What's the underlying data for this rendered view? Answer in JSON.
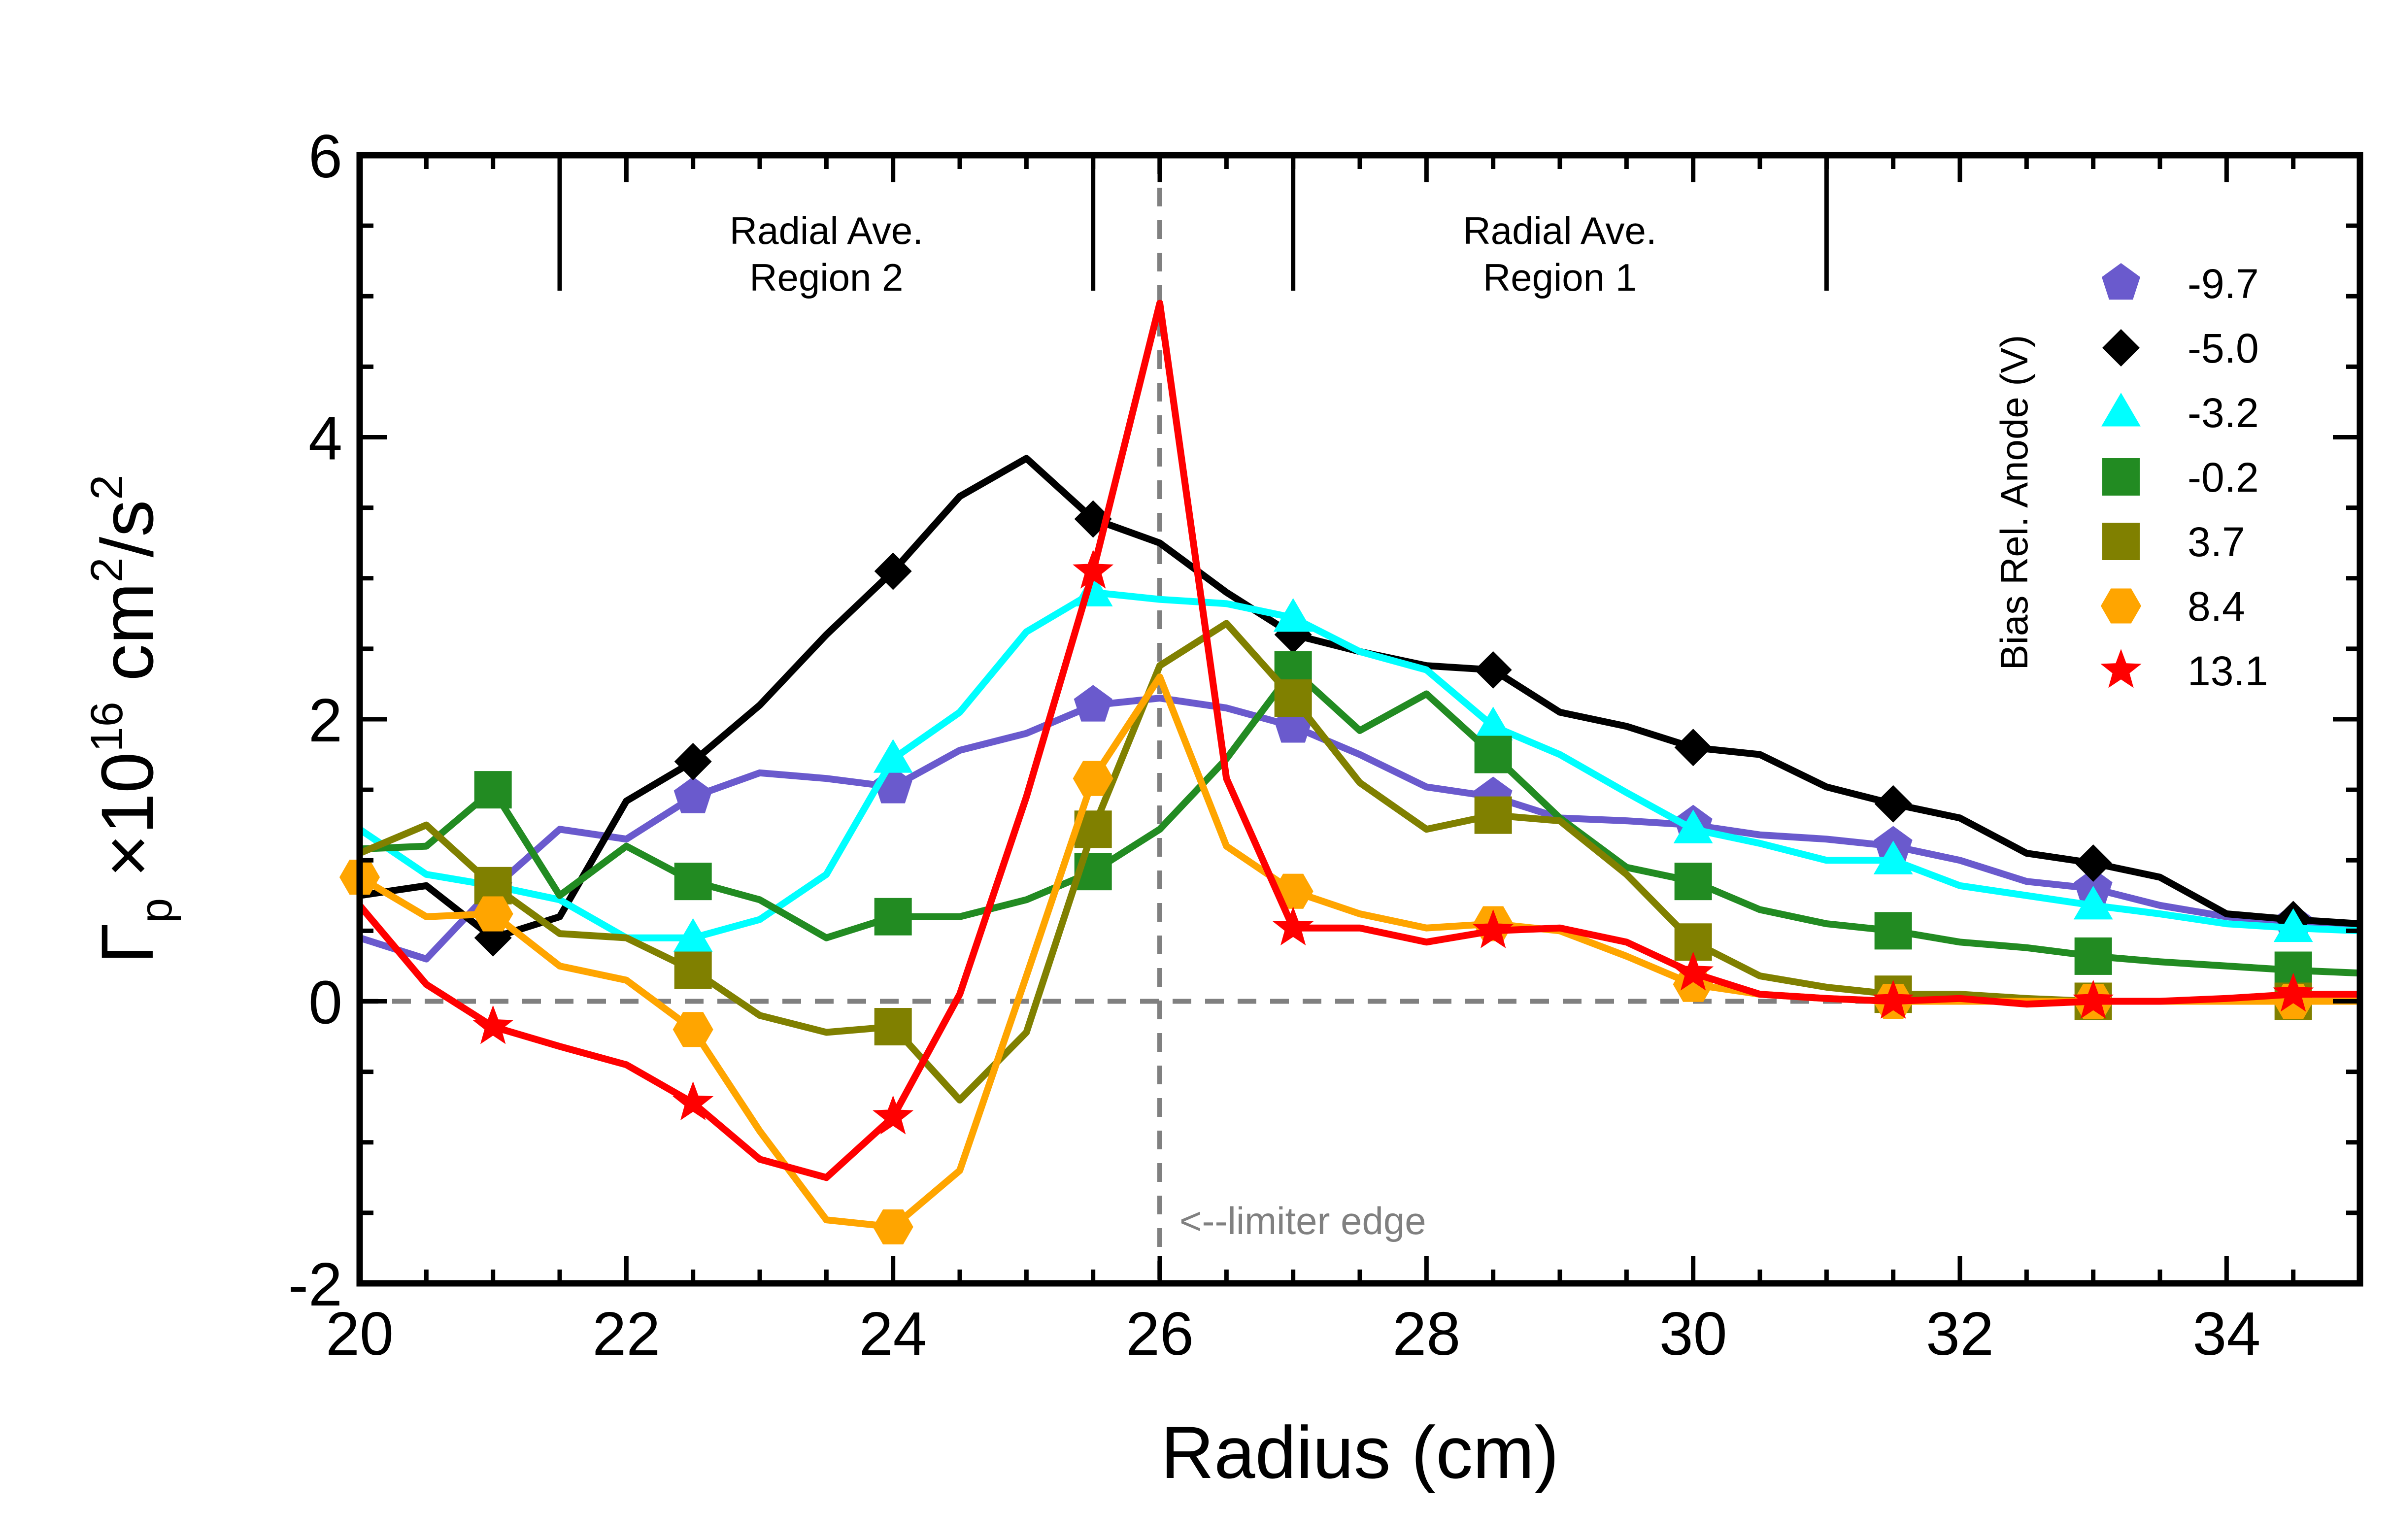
{
  "chart_data": {
    "type": "line",
    "xlabel": "Radius (cm)",
    "ylabel": {
      "base": "Γ",
      "sub": "p",
      "mid": " ×10",
      "exp1": "16",
      "unit1": " cm",
      "exp2": "2",
      "unit2": "/s",
      "exp3": "2"
    },
    "xlim": [
      20,
      35
    ],
    "ylim": [
      -2,
      6
    ],
    "xticks": [
      20,
      22,
      24,
      26,
      28,
      30,
      32,
      34
    ],
    "xtick_labels": [
      "20",
      "22",
      "24",
      "26",
      "28",
      "30",
      "32",
      "34"
    ],
    "yticks": [
      -2,
      0,
      2,
      4,
      6
    ],
    "ytick_labels": [
      "-2",
      "0",
      "2",
      "4",
      "6"
    ],
    "grid": false,
    "legend_title": "Bias Rel. Anode (V)",
    "legend_position": "top-right",
    "annotations": {
      "limiter": "<--limiter edge",
      "region2_line1": "Radial Ave.",
      "region2_line2": "Region 2",
      "region1_line1": "Radial Ave.",
      "region1_line2": "Region 1"
    },
    "series": [
      {
        "name": "-9.7",
        "color": "#6a5acd",
        "marker": "pentagon",
        "x": [
          20,
          20.5,
          21,
          21.5,
          22,
          22.5,
          23,
          23.5,
          24,
          24.5,
          25,
          25.5,
          26,
          26.5,
          27,
          27.5,
          28,
          28.5,
          29,
          29.5,
          30,
          30.5,
          31,
          31.5,
          32,
          32.5,
          33,
          33.5,
          34,
          34.5,
          35
        ],
        "y": [
          0.45,
          0.3,
          0.8,
          1.22,
          1.15,
          1.45,
          1.62,
          1.58,
          1.52,
          1.78,
          1.9,
          2.1,
          2.15,
          2.08,
          1.95,
          1.75,
          1.52,
          1.45,
          1.3,
          1.28,
          1.25,
          1.18,
          1.15,
          1.1,
          1.0,
          0.85,
          0.8,
          0.68,
          0.6,
          0.55,
          0.52
        ],
        "marker_x": [
          21,
          22.5,
          24,
          25.5,
          27,
          28.5,
          30,
          31.5,
          33,
          34.5
        ]
      },
      {
        "name": "-5.0",
        "color": "#000000",
        "marker": "diamond",
        "x": [
          20,
          20.5,
          21,
          21.5,
          22,
          22.5,
          23,
          23.5,
          24,
          24.5,
          25,
          25.5,
          26,
          26.5,
          27,
          27.5,
          28,
          28.5,
          29,
          29.5,
          30,
          30.5,
          31,
          31.5,
          32,
          32.5,
          33,
          33.5,
          34,
          34.5,
          35
        ],
        "y": [
          0.75,
          0.82,
          0.45,
          0.6,
          1.42,
          1.7,
          2.1,
          2.6,
          3.05,
          3.58,
          3.85,
          3.42,
          3.25,
          2.9,
          2.6,
          2.48,
          2.38,
          2.35,
          2.05,
          1.95,
          1.8,
          1.75,
          1.52,
          1.4,
          1.3,
          1.05,
          0.98,
          0.88,
          0.62,
          0.58,
          0.55
        ],
        "marker_x": [
          21,
          22.5,
          24,
          25.5,
          27,
          28.5,
          30,
          31.5,
          33,
          34.5
        ]
      },
      {
        "name": "-3.2",
        "color": "#00ffff",
        "marker": "triangle",
        "x": [
          20,
          20.5,
          21,
          21.5,
          22,
          22.5,
          23,
          23.5,
          24,
          24.5,
          25,
          25.5,
          26,
          26.5,
          27,
          27.5,
          28,
          28.5,
          29,
          29.5,
          30,
          30.5,
          31,
          31.5,
          32,
          32.5,
          33,
          33.5,
          34,
          34.5,
          35
        ],
        "y": [
          1.22,
          0.9,
          0.82,
          0.72,
          0.45,
          0.45,
          0.58,
          0.9,
          1.72,
          2.05,
          2.62,
          2.9,
          2.85,
          2.82,
          2.72,
          2.48,
          2.35,
          1.95,
          1.75,
          1.48,
          1.22,
          1.12,
          1.0,
          1.0,
          0.82,
          0.75,
          0.68,
          0.62,
          0.55,
          0.52,
          0.5
        ],
        "marker_x": [
          22.5,
          24,
          25.5,
          27,
          28.5,
          30,
          31.5,
          33,
          34.5
        ]
      },
      {
        "name": "-0.2",
        "color": "#228b22",
        "marker": "square",
        "x": [
          20,
          20.5,
          21,
          21.5,
          22,
          22.5,
          23,
          23.5,
          24,
          24.5,
          25,
          25.5,
          26,
          26.5,
          27,
          27.5,
          28,
          28.5,
          29,
          29.5,
          30,
          30.5,
          31,
          31.5,
          32,
          32.5,
          33,
          33.5,
          34,
          34.5,
          35
        ],
        "y": [
          1.08,
          1.1,
          1.5,
          0.75,
          1.1,
          0.85,
          0.72,
          0.45,
          0.6,
          0.6,
          0.72,
          0.92,
          1.22,
          1.72,
          2.35,
          1.92,
          2.18,
          1.75,
          1.3,
          0.95,
          0.85,
          0.65,
          0.55,
          0.5,
          0.42,
          0.38,
          0.32,
          0.28,
          0.25,
          0.22,
          0.2
        ],
        "marker_x": [
          21,
          22.5,
          24,
          25.5,
          27,
          28.5,
          30,
          31.5,
          33,
          34.5
        ]
      },
      {
        "name": "3.7",
        "color": "#808000",
        "marker": "square",
        "x": [
          20,
          20.5,
          21,
          21.5,
          22,
          22.5,
          23,
          23.5,
          24,
          24.5,
          25,
          25.5,
          26,
          26.5,
          27,
          27.5,
          28,
          28.5,
          29,
          29.5,
          30,
          30.5,
          31,
          31.5,
          32,
          32.5,
          33,
          33.5,
          34,
          34.5,
          35
        ],
        "y": [
          1.05,
          1.25,
          0.82,
          0.48,
          0.45,
          0.22,
          -0.1,
          -0.22,
          -0.18,
          -0.7,
          -0.22,
          1.22,
          2.38,
          2.68,
          2.15,
          1.55,
          1.22,
          1.32,
          1.28,
          0.9,
          0.42,
          0.18,
          0.1,
          0.05,
          0.05,
          0.02,
          0.0,
          0.0,
          0.0,
          0.0,
          0.0
        ],
        "marker_x": [
          21,
          22.5,
          24,
          25.5,
          27,
          28.5,
          30,
          31.5,
          33,
          34.5
        ]
      },
      {
        "name": "8.4",
        "color": "#ffa500",
        "marker": "hexagon",
        "x": [
          20,
          20.5,
          21,
          21.5,
          22,
          22.5,
          23,
          23.5,
          24,
          24.5,
          25,
          25.5,
          26,
          26.5,
          27,
          27.5,
          28,
          28.5,
          29,
          29.5,
          30,
          30.5,
          31,
          31.5,
          32,
          32.5,
          33,
          33.5,
          34,
          34.5,
          35
        ],
        "y": [
          0.88,
          0.6,
          0.62,
          0.25,
          0.15,
          -0.2,
          -0.92,
          -1.55,
          -1.6,
          -1.2,
          0.18,
          1.58,
          2.3,
          1.1,
          0.78,
          0.62,
          0.52,
          0.55,
          0.5,
          0.32,
          0.12,
          0.05,
          0.02,
          0.0,
          0.0,
          0.0,
          0.0,
          0.0,
          0.0,
          0.0,
          0.0
        ],
        "marker_x": [
          20,
          21,
          22.5,
          24,
          25.5,
          27,
          28.5,
          30,
          31.5,
          33,
          34.5
        ]
      },
      {
        "name": "13.1",
        "color": "#ff0000",
        "marker": "star",
        "x": [
          20,
          20.5,
          21,
          21.5,
          22,
          22.5,
          23,
          23.5,
          24,
          24.5,
          25,
          25.5,
          26,
          26.5,
          27,
          27.5,
          28,
          28.5,
          29,
          29.5,
          30,
          30.5,
          31,
          31.5,
          32,
          32.5,
          33,
          33.5,
          34,
          34.5,
          35
        ],
        "y": [
          0.68,
          0.12,
          -0.18,
          -0.32,
          -0.45,
          -0.72,
          -1.12,
          -1.25,
          -0.82,
          0.05,
          1.45,
          3.05,
          4.95,
          1.58,
          0.52,
          0.52,
          0.42,
          0.5,
          0.52,
          0.42,
          0.2,
          0.05,
          0.02,
          0.0,
          0.02,
          -0.02,
          0.0,
          0.0,
          0.02,
          0.05,
          0.05
        ],
        "marker_x": [
          21,
          22.5,
          24,
          25.5,
          27,
          28.5,
          30,
          31.5,
          33,
          34.5
        ]
      }
    ]
  }
}
